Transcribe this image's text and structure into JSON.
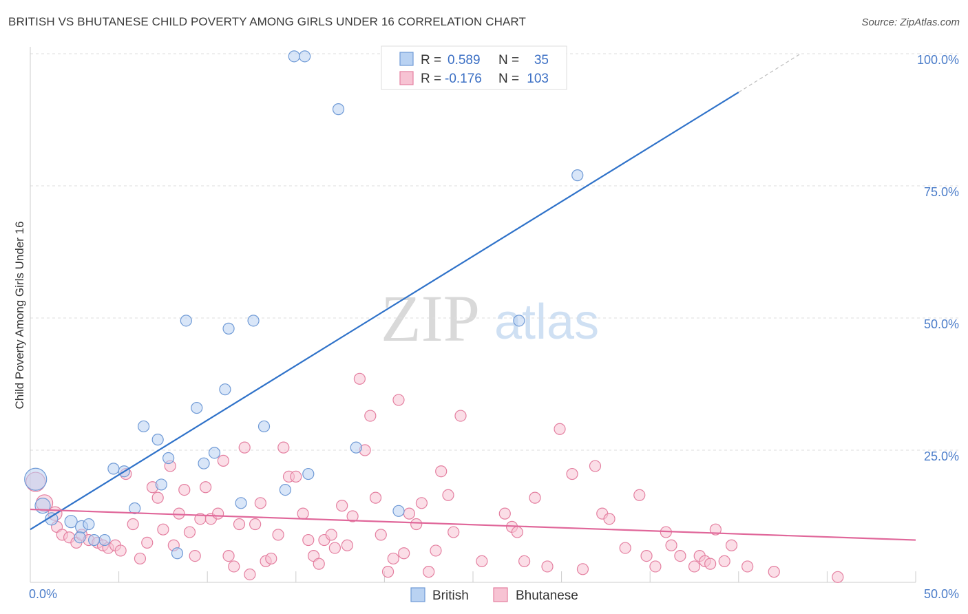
{
  "title": "BRITISH VS BHUTANESE CHILD POVERTY AMONG GIRLS UNDER 16 CORRELATION CHART",
  "source": "Source: ZipAtlas.com",
  "watermark": {
    "zip": "ZIP",
    "atlas": "atlas"
  },
  "colors": {
    "british_fill": "#b9d2f2",
    "british_stroke": "#6f9ad6",
    "british_line": "#2f72c9",
    "bhutanese_fill": "#f7c3d3",
    "bhutanese_stroke": "#e47fa0",
    "bhutanese_line": "#e0679a",
    "grid": "#dddddd",
    "tick_text": "#4a7cc9"
  },
  "legend": {
    "rows": [
      {
        "r_label": "R =",
        "r_value": "0.589",
        "n_label": "N =",
        "n_value": "35"
      },
      {
        "r_label": "R =",
        "r_value": "-0.176",
        "n_label": "N =",
        "n_value": "103"
      }
    ]
  },
  "chart_data": {
    "type": "scatter",
    "title": "BRITISH VS BHUTANESE CHILD POVERTY AMONG GIRLS UNDER 16 CORRELATION CHART",
    "xlabel": "",
    "ylabel": "Child Poverty Among Girls Under 16",
    "xlim": [
      0,
      50
    ],
    "ylim": [
      0,
      100
    ],
    "x_tick_labels": [
      "0.0%",
      "50.0%"
    ],
    "y_tick_labels": [
      "25.0%",
      "50.0%",
      "75.0%",
      "100.0%"
    ],
    "y_ticks": [
      25,
      50,
      75,
      100
    ],
    "grid": true,
    "legend_position": "top-center",
    "series": [
      {
        "name": "British",
        "trend": {
          "x": [
            0,
            40
          ],
          "y": [
            10.0,
            92.7
          ],
          "dashed_to": [
            43.5,
            100
          ]
        },
        "points": [
          [
            0.3,
            19.5,
            16
          ],
          [
            0.7,
            14.5,
            11
          ],
          [
            1.2,
            12,
            9
          ],
          [
            2.3,
            11.5,
            9
          ],
          [
            2.9,
            10.5,
            9
          ],
          [
            2.8,
            8.5,
            8
          ],
          [
            4.2,
            8,
            8
          ],
          [
            3.3,
            11,
            8
          ],
          [
            4.7,
            21.5,
            8
          ],
          [
            5.3,
            21,
            8
          ],
          [
            5.9,
            14,
            8
          ],
          [
            6.4,
            29.5,
            8
          ],
          [
            7.4,
            18.5,
            8
          ],
          [
            7.2,
            27,
            8
          ],
          [
            7.8,
            23.5,
            8
          ],
          [
            8.3,
            5.5,
            8
          ],
          [
            8.8,
            49.5,
            8
          ],
          [
            9.4,
            33,
            8
          ],
          [
            9.8,
            22.5,
            8
          ],
          [
            10.4,
            24.5,
            8
          ],
          [
            11.0,
            36.5,
            8
          ],
          [
            11.2,
            48,
            8
          ],
          [
            11.9,
            15,
            8
          ],
          [
            12.6,
            49.5,
            8
          ],
          [
            13.2,
            29.5,
            8
          ],
          [
            14.4,
            17.5,
            8
          ],
          [
            15.7,
            20.5,
            8
          ],
          [
            14.9,
            99.5,
            8
          ],
          [
            15.5,
            99.5,
            8
          ],
          [
            17.4,
            89.5,
            8
          ],
          [
            18.4,
            25.5,
            8
          ],
          [
            20.8,
            13.5,
            8
          ],
          [
            27.6,
            49.5,
            8
          ],
          [
            30.9,
            77,
            8
          ],
          [
            3.6,
            8,
            8
          ]
        ]
      },
      {
        "name": "Bhutanese",
        "trend": {
          "x": [
            0,
            50
          ],
          "y": [
            13.8,
            8.0
          ]
        },
        "points": [
          [
            0.3,
            19,
            14
          ],
          [
            0.8,
            15,
            12
          ],
          [
            1.4,
            13,
            10
          ],
          [
            1.5,
            10.5,
            8
          ],
          [
            1.8,
            9,
            8
          ],
          [
            2.2,
            8.5,
            8
          ],
          [
            2.6,
            7.5,
            8
          ],
          [
            2.9,
            9,
            8
          ],
          [
            3.3,
            8,
            8
          ],
          [
            3.8,
            7.5,
            8
          ],
          [
            4.1,
            7,
            8
          ],
          [
            4.4,
            6.5,
            8
          ],
          [
            4.8,
            7,
            8
          ],
          [
            5.1,
            6,
            8
          ],
          [
            5.4,
            20.5,
            8
          ],
          [
            5.8,
            11,
            8
          ],
          [
            6.2,
            4.5,
            8
          ],
          [
            6.6,
            7.5,
            8
          ],
          [
            6.9,
            18,
            8
          ],
          [
            7.2,
            16,
            8
          ],
          [
            7.5,
            10,
            8
          ],
          [
            7.9,
            22,
            8
          ],
          [
            8.1,
            7,
            8
          ],
          [
            8.4,
            13,
            8
          ],
          [
            8.7,
            17.5,
            8
          ],
          [
            9.0,
            9.5,
            8
          ],
          [
            9.3,
            5,
            8
          ],
          [
            9.6,
            12,
            8
          ],
          [
            9.9,
            18,
            8
          ],
          [
            10.2,
            12,
            8
          ],
          [
            10.6,
            13,
            8
          ],
          [
            10.9,
            23,
            8
          ],
          [
            11.2,
            5,
            8
          ],
          [
            11.5,
            3,
            8
          ],
          [
            11.8,
            11,
            8
          ],
          [
            12.1,
            25.5,
            8
          ],
          [
            12.4,
            1.5,
            8
          ],
          [
            12.7,
            11,
            8
          ],
          [
            13.0,
            15,
            8
          ],
          [
            13.3,
            4,
            8
          ],
          [
            13.6,
            4.5,
            8
          ],
          [
            14.0,
            9,
            8
          ],
          [
            14.3,
            25.5,
            8
          ],
          [
            14.6,
            20,
            8
          ],
          [
            15.0,
            20,
            8
          ],
          [
            15.4,
            13,
            8
          ],
          [
            15.7,
            8,
            8
          ],
          [
            16.0,
            5,
            8
          ],
          [
            16.3,
            3.5,
            8
          ],
          [
            16.6,
            8,
            8
          ],
          [
            17.0,
            9,
            8
          ],
          [
            17.2,
            6.5,
            8
          ],
          [
            17.6,
            14.5,
            8
          ],
          [
            17.9,
            7,
            8
          ],
          [
            18.2,
            12.5,
            8
          ],
          [
            18.6,
            38.5,
            8
          ],
          [
            18.9,
            25,
            8
          ],
          [
            19.2,
            31.5,
            8
          ],
          [
            19.5,
            16,
            8
          ],
          [
            19.8,
            9,
            8
          ],
          [
            20.2,
            2,
            8
          ],
          [
            20.5,
            4.5,
            8
          ],
          [
            20.8,
            34.5,
            8
          ],
          [
            21.1,
            5.5,
            8
          ],
          [
            21.4,
            13,
            8
          ],
          [
            21.8,
            11,
            8
          ],
          [
            22.1,
            15,
            8
          ],
          [
            22.5,
            2,
            8
          ],
          [
            22.9,
            6,
            8
          ],
          [
            23.2,
            21,
            8
          ],
          [
            23.6,
            16.5,
            8
          ],
          [
            23.9,
            9.5,
            8
          ],
          [
            24.3,
            31.5,
            8
          ],
          [
            25.5,
            4,
            8
          ],
          [
            26.8,
            13,
            8
          ],
          [
            27.2,
            10.5,
            8
          ],
          [
            27.5,
            9.5,
            8
          ],
          [
            27.9,
            4,
            8
          ],
          [
            28.5,
            16,
            8
          ],
          [
            29.2,
            3,
            8
          ],
          [
            29.9,
            29,
            8
          ],
          [
            30.6,
            20.5,
            8
          ],
          [
            31.2,
            2.5,
            8
          ],
          [
            31.9,
            22,
            8
          ],
          [
            32.3,
            13,
            8
          ],
          [
            32.7,
            12,
            8
          ],
          [
            33.6,
            6.5,
            8
          ],
          [
            34.4,
            16.5,
            8
          ],
          [
            34.8,
            5,
            8
          ],
          [
            35.3,
            3,
            8
          ],
          [
            35.9,
            9.5,
            8
          ],
          [
            36.2,
            7,
            8
          ],
          [
            36.7,
            5,
            8
          ],
          [
            37.5,
            3,
            8
          ],
          [
            37.8,
            5,
            8
          ],
          [
            38.1,
            4,
            8
          ],
          [
            38.4,
            3.5,
            8
          ],
          [
            38.7,
            10,
            8
          ],
          [
            39.2,
            4,
            8
          ],
          [
            39.6,
            7,
            8
          ],
          [
            40.5,
            3,
            8
          ],
          [
            42.0,
            2,
            8
          ],
          [
            45.6,
            1,
            8
          ]
        ]
      }
    ]
  }
}
